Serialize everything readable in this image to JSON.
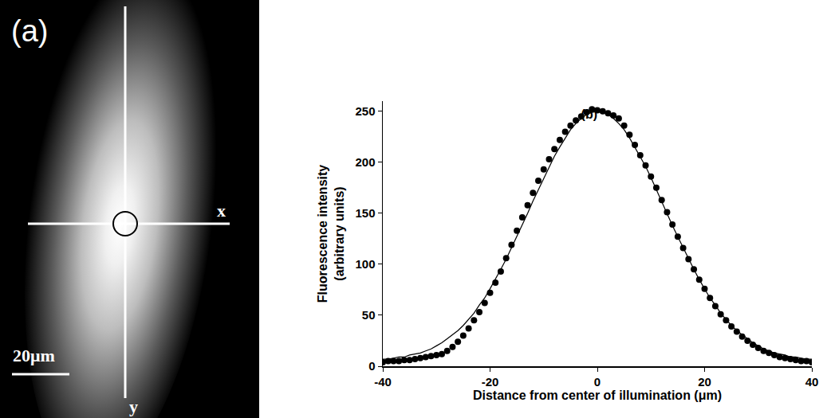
{
  "panel_a": {
    "panel_label": "(a)",
    "axis_labels": [
      "x",
      "y"
    ],
    "scale_bar": "20μm"
  },
  "chart_data": {
    "type": "scatter",
    "title": "(b)",
    "x_label": "Distance from center of illumination (μm)",
    "y_label": "Fluorescence intensity\n(arbitrary units)",
    "x": [
      -40,
      -39,
      -38,
      -37,
      -36,
      -35,
      -34,
      -33,
      -32,
      -31,
      -30,
      -29,
      -28,
      -27,
      -26,
      -25,
      -24,
      -23,
      -22,
      -21,
      -20,
      -19,
      -18,
      -17,
      -16,
      -15,
      -14,
      -13,
      -12,
      -11,
      -10,
      -9,
      -8,
      -7,
      -6,
      -5,
      -4,
      -3,
      -2,
      -1,
      0,
      1,
      2,
      3,
      4,
      5,
      6,
      7,
      8,
      9,
      10,
      11,
      12,
      13,
      14,
      15,
      16,
      17,
      18,
      19,
      20,
      21,
      22,
      23,
      24,
      25,
      26,
      27,
      28,
      29,
      30,
      31,
      32,
      33,
      34,
      35,
      36,
      37,
      38,
      39,
      40
    ],
    "series": [
      {
        "type": "scatter",
        "marker": "circle",
        "color": "#000000",
        "values": [
          4,
          5,
          5,
          5,
          6,
          6,
          7,
          8,
          9,
          10,
          11,
          12,
          15,
          19,
          24,
          30,
          37,
          45,
          53,
          62,
          72,
          82,
          93,
          106,
          119,
          133,
          146,
          158,
          170,
          182,
          193,
          203,
          213,
          222,
          230,
          236,
          241,
          245,
          249,
          252,
          251,
          250,
          248,
          246,
          243,
          236,
          227,
          217,
          207,
          197,
          186,
          175,
          163,
          151,
          139,
          127,
          116,
          105,
          95,
          85,
          76,
          67,
          59,
          51,
          45,
          39,
          34,
          29,
          25,
          21,
          18,
          15,
          13,
          11,
          9,
          8,
          7,
          6,
          5,
          5,
          4
        ]
      },
      {
        "type": "line",
        "line_style": "solid",
        "color": "#000000",
        "values": [
          7,
          7,
          8,
          9,
          9,
          11,
          12,
          13,
          15,
          17,
          20,
          23,
          27,
          31,
          35,
          40,
          46,
          52,
          60,
          67,
          76,
          85,
          95,
          105,
          116,
          127,
          138,
          150,
          162,
          173,
          185,
          196,
          206,
          215,
          224,
          232,
          238,
          243,
          247,
          249,
          250,
          249,
          247,
          243,
          238,
          232,
          224,
          215,
          206,
          196,
          185,
          173,
          162,
          150,
          138,
          127,
          116,
          105,
          95,
          85,
          76,
          67,
          60,
          52,
          46,
          40,
          35,
          31,
          27,
          23,
          20,
          17,
          15,
          13,
          12,
          11,
          9,
          9,
          8,
          7,
          7
        ]
      }
    ],
    "xlim": [
      -40,
      40
    ],
    "xticks": [
      -40,
      -20,
      0,
      20,
      40
    ],
    "ylim": [
      0,
      260
    ],
    "yticks": [
      0,
      50,
      100,
      150,
      200,
      250
    ],
    "grid": false
  }
}
